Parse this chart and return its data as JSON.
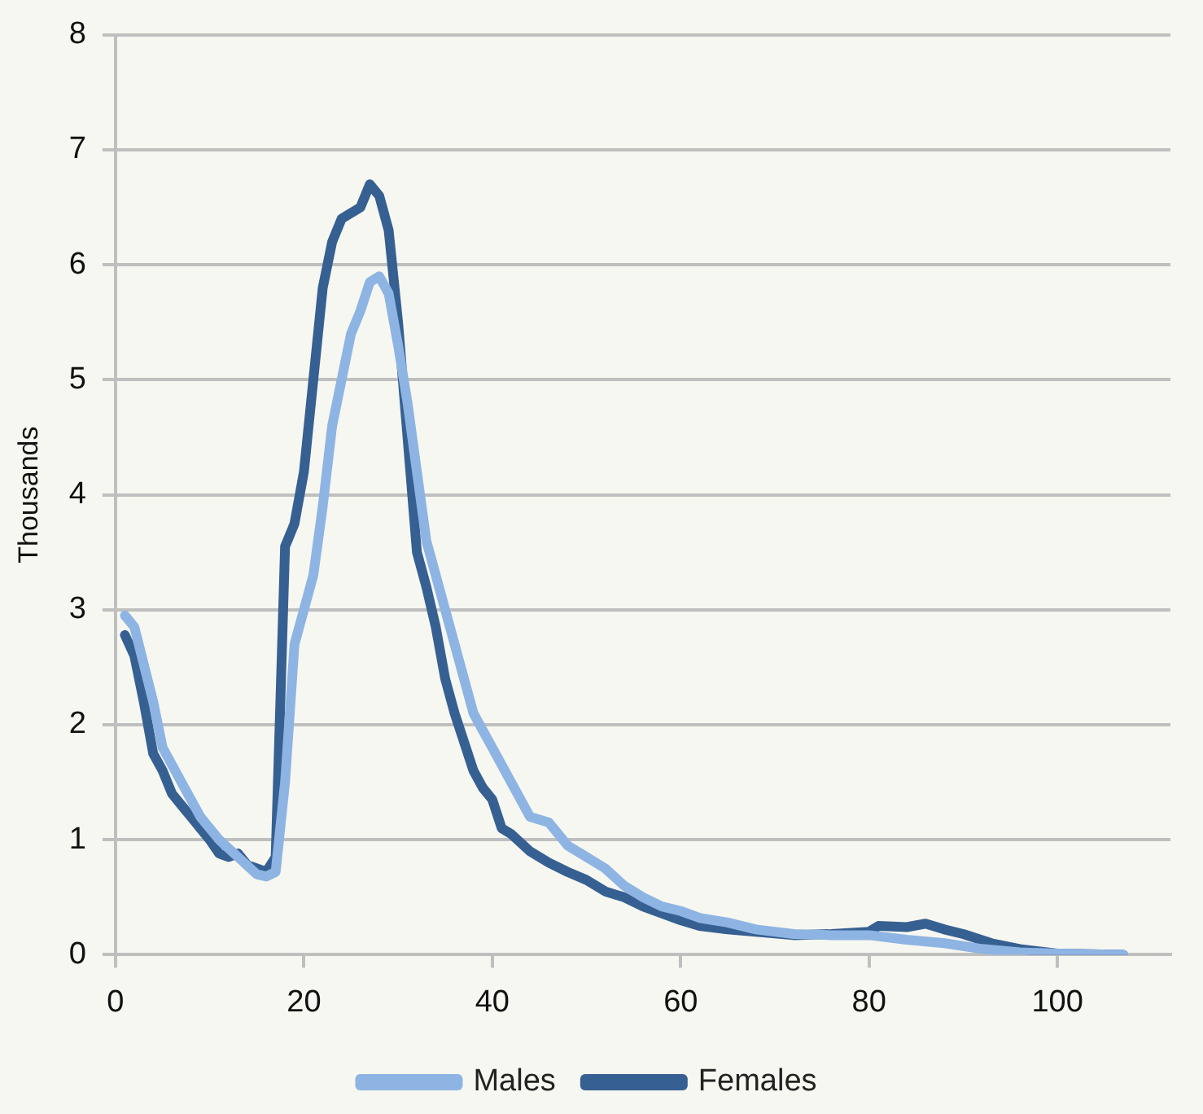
{
  "chart_data": {
    "type": "line",
    "ylabel": "Thousands",
    "xlim": [
      0,
      112
    ],
    "xticks": [
      0,
      20,
      40,
      60,
      80,
      100
    ],
    "ylim": [
      0,
      8
    ],
    "yticks": [
      0,
      1,
      2,
      3,
      4,
      5,
      6,
      7,
      8
    ],
    "grid": "y",
    "legend": "bottom",
    "marker": "none",
    "line_style": "solid",
    "series": [
      {
        "name": "Males",
        "color": "#8eb4e3",
        "x": [
          1,
          2,
          4,
          5,
          7,
          9,
          11,
          13,
          15,
          16,
          17,
          18,
          19,
          20,
          21,
          22,
          23,
          24,
          25,
          26,
          27,
          28,
          29,
          30,
          31,
          32,
          33,
          34,
          35,
          36,
          37,
          38,
          39,
          40,
          42,
          44,
          46,
          48,
          50,
          52,
          54,
          56,
          58,
          60,
          62,
          65,
          68,
          72,
          76,
          80,
          84,
          88,
          92,
          96,
          100,
          107
        ],
        "values": [
          2.95,
          2.85,
          2.2,
          1.8,
          1.5,
          1.2,
          1.0,
          0.85,
          0.7,
          0.68,
          0.72,
          1.5,
          2.7,
          3.0,
          3.3,
          3.9,
          4.6,
          5.0,
          5.4,
          5.6,
          5.85,
          5.9,
          5.75,
          5.3,
          4.8,
          4.2,
          3.6,
          3.3,
          3.0,
          2.7,
          2.4,
          2.1,
          1.95,
          1.8,
          1.5,
          1.2,
          1.15,
          0.95,
          0.85,
          0.75,
          0.6,
          0.5,
          0.42,
          0.38,
          0.32,
          0.28,
          0.22,
          0.18,
          0.17,
          0.17,
          0.13,
          0.1,
          0.05,
          0.02,
          0.01,
          0
        ]
      },
      {
        "name": "Females",
        "color": "#376092",
        "x": [
          1,
          2,
          3,
          4,
          5,
          6,
          7,
          8,
          9,
          10,
          11,
          12,
          13,
          14,
          15,
          16,
          17,
          18,
          19,
          20,
          21,
          22,
          23,
          24,
          25,
          26,
          27,
          28,
          29,
          30,
          31,
          32,
          33,
          34,
          35,
          36,
          37,
          38,
          39,
          40,
          41,
          42,
          44,
          46,
          48,
          50,
          52,
          54,
          56,
          58,
          60,
          62,
          65,
          68,
          72,
          76,
          80,
          81,
          84,
          86,
          88,
          90,
          93,
          96,
          100,
          107
        ],
        "values": [
          2.78,
          2.6,
          2.2,
          1.75,
          1.6,
          1.4,
          1.3,
          1.2,
          1.1,
          1.0,
          0.88,
          0.85,
          0.88,
          0.78,
          0.75,
          0.72,
          0.85,
          3.55,
          3.75,
          4.2,
          5.0,
          5.8,
          6.2,
          6.4,
          6.45,
          6.5,
          6.7,
          6.6,
          6.3,
          5.5,
          4.5,
          3.5,
          3.2,
          2.85,
          2.4,
          2.1,
          1.85,
          1.6,
          1.45,
          1.35,
          1.1,
          1.05,
          0.9,
          0.8,
          0.72,
          0.65,
          0.55,
          0.5,
          0.42,
          0.36,
          0.3,
          0.25,
          0.22,
          0.2,
          0.17,
          0.18,
          0.2,
          0.25,
          0.24,
          0.27,
          0.22,
          0.18,
          0.1,
          0.05,
          0.01,
          0
        ]
      }
    ]
  }
}
